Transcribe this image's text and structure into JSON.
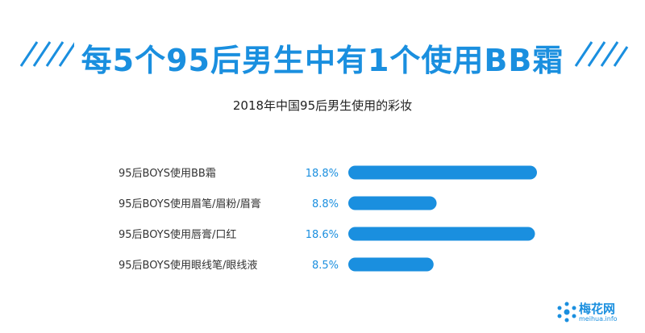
{
  "headline": "每5个95后男生中有1个使用BB霜",
  "chart_data": {
    "type": "bar",
    "orientation": "horizontal",
    "title": "2018年中国95后男生使用的彩妆",
    "categories": [
      "95后BOYS使用BB霜",
      "95后BOYS使用眉笔/眉粉/眉膏",
      "95后BOYS使用唇膏/口红",
      "95后BOYS使用眼线笔/眼线液"
    ],
    "values": [
      18.8,
      8.8,
      18.6,
      8.5
    ],
    "value_labels": [
      "18.8%",
      "8.8%",
      "18.6%",
      "8.5%"
    ],
    "xlim": [
      0,
      18.8
    ],
    "grid": false,
    "legend": "none",
    "bar_color": "#1a8fdf"
  },
  "logo": {
    "text": "梅花网",
    "sub": "meihua.info"
  },
  "colors": {
    "accent": "#1a8fdf",
    "text": "#222222"
  }
}
